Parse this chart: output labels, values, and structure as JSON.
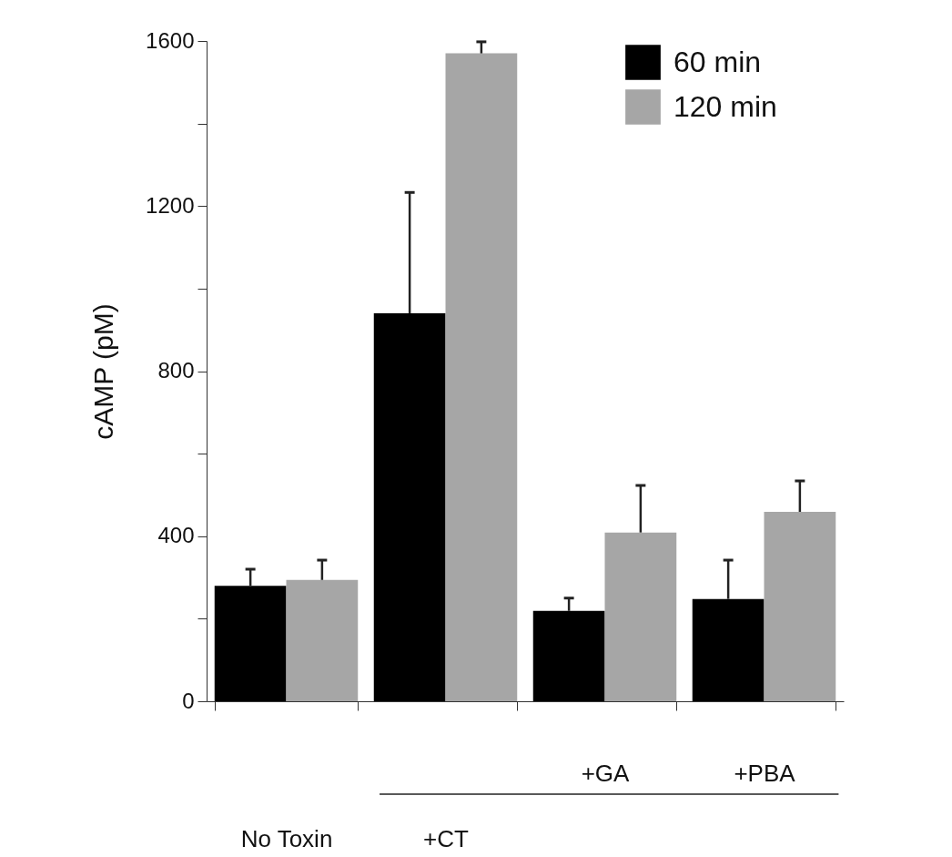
{
  "chart_data": {
    "type": "bar",
    "ylabel": "cAMP (pM)",
    "categories": [
      "No Toxin",
      "+CT",
      "+GA",
      "+PBA"
    ],
    "series": [
      {
        "name": "60 min",
        "color": "#000000",
        "values": [
          280,
          940,
          219,
          248
        ],
        "errors": [
          [
            280,
            320
          ],
          [
            940,
            1233
          ],
          [
            219,
            250
          ],
          [
            248,
            342
          ]
        ]
      },
      {
        "name": "120 min",
        "color": "#a6a6a6",
        "values": [
          294,
          1570,
          409,
          459
        ],
        "errors": [
          [
            294,
            342
          ],
          [
            1570,
            1598
          ],
          [
            409,
            523
          ],
          [
            459,
            534
          ]
        ]
      }
    ],
    "ylim": [
      0,
      1600
    ],
    "yticks": [
      0,
      {
        "value": 200,
        "label": null
      },
      400,
      {
        "value": 600,
        "label": null
      },
      800,
      {
        "value": 1000,
        "label": null
      },
      1200,
      {
        "value": 1400,
        "label": null
      },
      1600
    ],
    "grid": false,
    "legend": "top right"
  }
}
